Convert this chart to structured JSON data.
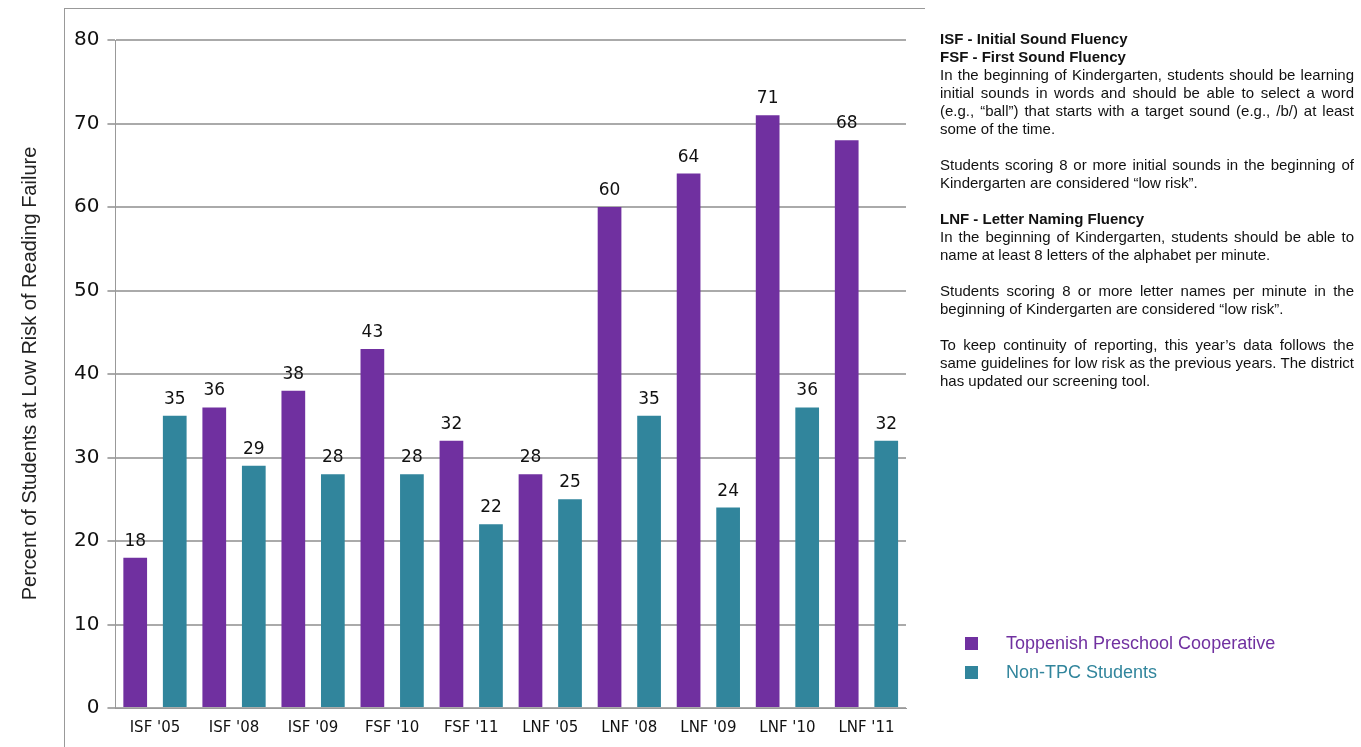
{
  "chart_data": {
    "type": "bar",
    "ylabel": "Percent of Students at Low Risk of Reading Failure",
    "categories": [
      "ISF '05",
      "ISF '08",
      "ISF '09",
      "FSF '10",
      "FSF '11",
      "LNF '05",
      "LNF '08",
      "LNF '09",
      "LNF '10",
      "LNF '11"
    ],
    "series": [
      {
        "name": "Toppenish Preschool Cooperative",
        "color": "#7030a0",
        "values": [
          18,
          36,
          38,
          43,
          32,
          28,
          60,
          64,
          71,
          68
        ]
      },
      {
        "name": "Non-TPC Students",
        "color": "#31859c",
        "values": [
          35,
          29,
          28,
          28,
          22,
          25,
          35,
          24,
          36,
          32
        ]
      }
    ],
    "ylim": [
      0,
      80
    ],
    "yticks": [
      0,
      10,
      20,
      30,
      40,
      50,
      60,
      70,
      80
    ],
    "grid": "y",
    "legend": "right",
    "data_labels": true,
    "annotations": [
      "ISF - Initial Sound Fluency",
      "FSF - First Sound Fluency",
      "In the beginning of Kindergarten, students should be learning initial sounds in words and should be able to select a word (e.g., “ball”) that starts with a target sound (e.g., /b/) at least some of the time.",
      "Students scoring 8 or more initial sounds in the beginning of Kindergarten are considered “low risk”.",
      "LNF - Letter Naming Fluency",
      "In the beginning of Kindergarten, students should be able to name at least 8 letters of the alphabet per minute.",
      "Students scoring 8 or more letter names per minute in the beginning of Kindergarten are considered “low risk”.",
      "To keep continuity of reporting, this year’s data follows the same guidelines for low risk as the previous years. The district has updated our screening tool."
    ]
  }
}
